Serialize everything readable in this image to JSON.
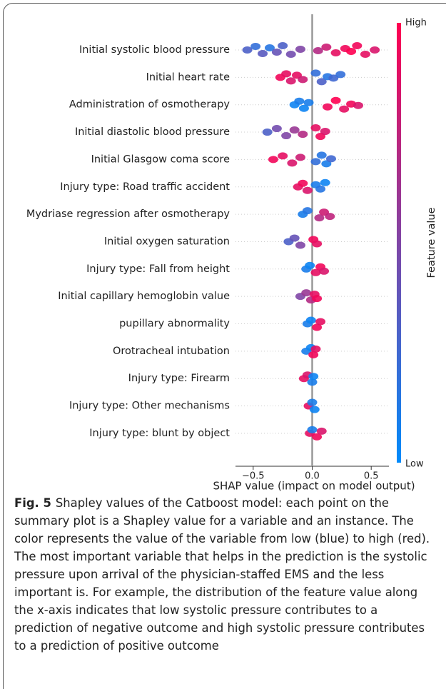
{
  "chart_data": {
    "type": "beeswarm",
    "xlabel": "SHAP value (impact on model output)",
    "xlim": [
      -0.65,
      0.65
    ],
    "xticks": [
      {
        "value": -0.5,
        "label": "−0.5"
      },
      {
        "value": 0,
        "label": "0.0"
      },
      0.5
    ],
    "colormap": [
      "#008bfb",
      "#ff0051"
    ],
    "colorbar_title": "Feature value",
    "colorbar_high": "High",
    "colorbar_low": "Low",
    "categories": [
      "Initial systolic blood pressure",
      "Initial heart rate",
      "Administration of osmotherapy",
      "Initial diastolic blood pressure",
      "Initial Glasgow coma score",
      "Injury type: Road traffic accident",
      "Mydriase regression after osmotherapy",
      "Initial oxygen saturation",
      "Injury type: Fall from height",
      "Initial capillary hemoglobin value",
      "pupillary abnormality",
      "Orotracheal intubation",
      "Injury type: Firearm",
      "Injury type: Other mechanisms",
      "Injury type: blunt by object"
    ],
    "shap": [
      [
        -0.55,
        -0.48,
        -0.42,
        -0.36,
        -0.3,
        -0.25,
        -0.18,
        -0.1,
        0.05,
        0.12,
        0.2,
        0.28,
        0.33,
        0.38,
        0.45,
        0.53
      ],
      [
        -0.27,
        -0.22,
        -0.18,
        -0.13,
        -0.08,
        0.03,
        0.08,
        0.13,
        0.18,
        0.24
      ],
      [
        -0.15,
        -0.11,
        -0.07,
        -0.03,
        0.13,
        0.2,
        0.27,
        0.33,
        0.39
      ],
      [
        -0.38,
        -0.3,
        -0.22,
        -0.15,
        -0.08,
        0.03,
        0.07,
        0.11
      ],
      [
        -0.33,
        -0.25,
        -0.17,
        -0.1,
        0.03,
        0.08,
        0.12,
        0.16
      ],
      [
        -0.12,
        -0.08,
        -0.04,
        0.03,
        0.07,
        0.11
      ],
      [
        -0.08,
        -0.04,
        0.06,
        0.1,
        0.15
      ],
      [
        -0.2,
        -0.15,
        -0.1,
        0.01,
        0.04
      ],
      [
        -0.05,
        -0.02,
        0.03,
        0.07,
        0.1
      ],
      [
        -0.1,
        -0.05,
        -0.01,
        0.02,
        0.04
      ],
      [
        -0.04,
        -0.01,
        0.04,
        0.07
      ],
      [
        -0.05,
        -0.01,
        0.01,
        0.03
      ],
      [
        -0.07,
        -0.04,
        0.0,
        0.01
      ],
      [
        -0.03,
        0.0,
        0.02
      ],
      [
        -0.02,
        0.0,
        0.04,
        0.08
      ]
    ],
    "feature_value": [
      [
        0.3,
        0.2,
        0.35,
        0.15,
        0.4,
        0.3,
        0.45,
        0.5,
        0.7,
        0.8,
        0.9,
        0.95,
        1,
        0.95,
        0.9,
        0.85
      ],
      [
        0.95,
        0.9,
        0.85,
        0.9,
        0.8,
        0.2,
        0.3,
        0.15,
        0.25,
        0.2
      ],
      [
        0.05,
        0.1,
        0.05,
        0.1,
        0.95,
        1,
        0.9,
        0.95,
        0.85
      ],
      [
        0.3,
        0.45,
        0.5,
        0.6,
        0.7,
        0.9,
        0.95,
        0.85
      ],
      [
        0.95,
        0.9,
        0.85,
        0.8,
        0.2,
        0.15,
        0.1,
        0.25
      ],
      [
        0.9,
        0.95,
        0.85,
        0.1,
        0.15,
        0.05
      ],
      [
        0.1,
        0.15,
        0.7,
        0.8,
        0.75
      ],
      [
        0.3,
        0.4,
        0.5,
        0.95,
        0.9
      ],
      [
        0.1,
        0.05,
        0.9,
        0.95,
        0.85
      ],
      [
        0.5,
        0.6,
        0.7,
        0.9,
        0.95
      ],
      [
        0.1,
        0.05,
        0.95,
        0.9
      ],
      [
        0.1,
        0.05,
        0.95,
        0.9
      ],
      [
        0.9,
        0.85,
        0.1,
        0.05
      ],
      [
        0.9,
        0.1,
        0.05
      ],
      [
        0.9,
        0.1,
        0.95,
        0.85
      ]
    ]
  },
  "caption": {
    "label": "Fig. 5",
    "text": "Shapley values of the Catboost model: each point on the summary plot is a Shapley value for a variable and an instance. The color represents the value of the variable from low (blue) to high (red). The most important variable that helps in the prediction is the systolic pressure upon arrival of the physician-staffed EMS and the less important is. For example, the distribution of the feature value along the x-axis indicates that low systolic pressure contributes to a prediction of negative outcome and high systolic pressure contributes to a prediction of positive outcome"
  }
}
